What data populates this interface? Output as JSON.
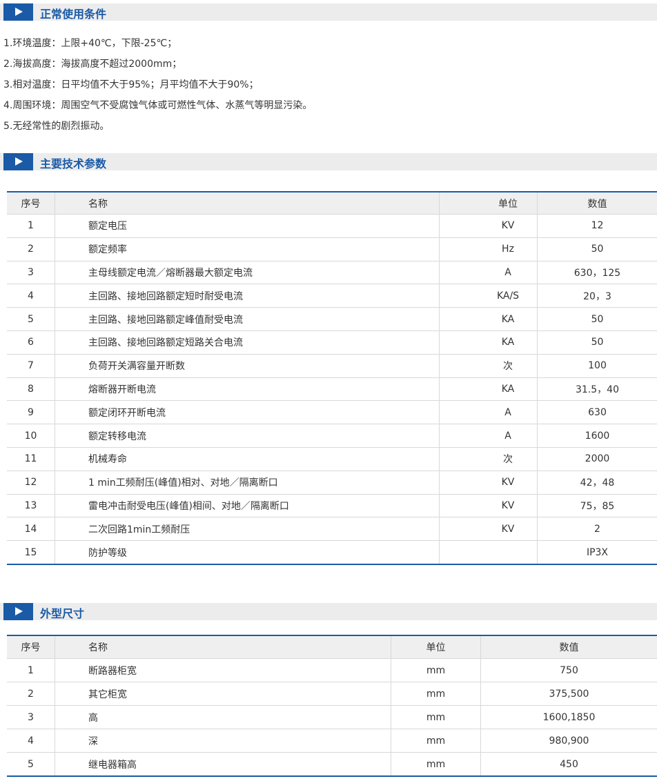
{
  "sections": [
    {
      "title": "正常使用条件",
      "lines": [
        "1.环境温度：上限+40℃，下限-25℃；",
        "2.海拔高度：海拔高度不超过2000mm；",
        "3.相对温度：日平均值不大于95%；月平均值不大于90%；",
        "4.周围环境：周围空气不受腐蚀气体或可燃性气体、水蒸气等明显污染。",
        "5.无经常性的剧烈振动。"
      ]
    },
    {
      "title": "主要技术参数",
      "table": {
        "header": [
          "序号",
          "名称",
          "单位",
          "数值"
        ],
        "rows": [
          [
            "1",
            "额定电压",
            "KV",
            "12"
          ],
          [
            "2",
            "额定频率",
            "Hz",
            "50"
          ],
          [
            "3",
            "主母线额定电流／熔断器最大额定电流",
            "A",
            "630，125"
          ],
          [
            "4",
            "主回路、接地回路额定短时耐受电流",
            "KA/S",
            "20，3"
          ],
          [
            "5",
            "主回路、接地回路额定峰值耐受电流",
            "KA",
            "50"
          ],
          [
            "6",
            "主回路、接地回路额定短路关合电流",
            "KA",
            "50"
          ],
          [
            "7",
            "负荷开关满容量开断数",
            "次",
            "100"
          ],
          [
            "8",
            "熔断器开断电流",
            "KA",
            "31.5，40"
          ],
          [
            "9",
            "额定闭环开断电流",
            "A",
            "630"
          ],
          [
            "10",
            "额定转移电流",
            "A",
            "1600"
          ],
          [
            "11",
            "机械寿命",
            "次",
            "2000"
          ],
          [
            "12",
            "1 min工频耐压(峰值)相对、对地／隔离断口",
            "KV",
            "42，48"
          ],
          [
            "13",
            "雷电冲击耐受电压(峰值)相间、对地／隔离断口",
            "KV",
            "75，85"
          ],
          [
            "14",
            "二次回路1min工频耐压",
            "KV",
            "2"
          ],
          [
            "15",
            "防护等级",
            "",
            "IP3X"
          ]
        ]
      }
    },
    {
      "title": "外型尺寸",
      "table": {
        "header": [
          "序号",
          "名称",
          "单位",
          "数值"
        ],
        "rows": [
          [
            "1",
            "断路器柜宽",
            "mm",
            "750"
          ],
          [
            "2",
            "其它柜宽",
            "mm",
            "375,500"
          ],
          [
            "3",
            "高",
            "mm",
            "1600,1850"
          ],
          [
            "4",
            "深",
            "mm",
            "980,900"
          ],
          [
            "5",
            "继电器箱高",
            "mm",
            "450"
          ]
        ]
      }
    }
  ]
}
